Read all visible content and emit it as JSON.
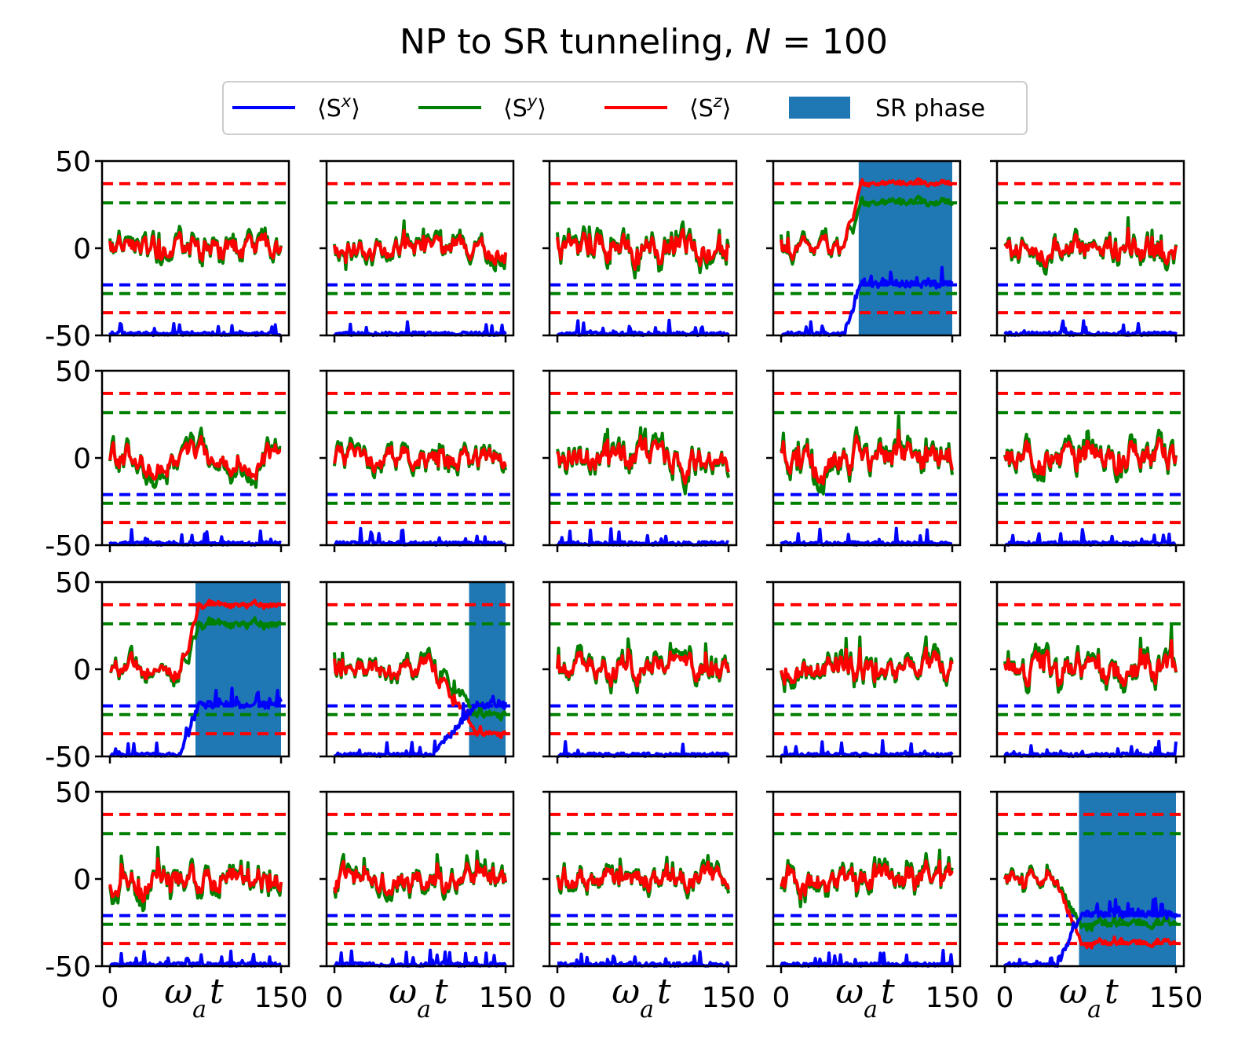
{
  "figure": {
    "title_prefix": "NP to SR tunneling, ",
    "title_var": "N",
    "title_eq": " = 100"
  },
  "legend": {
    "items": [
      {
        "key": "sx",
        "label_pre": "⟨S",
        "label_sup": "x",
        "label_post": "⟩",
        "color": "#0000ff",
        "kind": "line"
      },
      {
        "key": "sy",
        "label_pre": "⟨S",
        "label_sup": "y",
        "label_post": "⟩",
        "color": "#008000",
        "kind": "line"
      },
      {
        "key": "sz",
        "label_pre": "⟨S",
        "label_sup": "z",
        "label_post": "⟩",
        "color": "#ff0000",
        "kind": "line"
      },
      {
        "key": "sr",
        "label": "SR phase",
        "color": "#1f77b4",
        "kind": "patch"
      }
    ]
  },
  "chart_data": {
    "type": "line",
    "grid": {
      "rows": 4,
      "cols": 5
    },
    "xlim": [
      0,
      150
    ],
    "ylim": [
      -50,
      50
    ],
    "xticks": [
      0,
      150
    ],
    "xtick_labels": [
      "0",
      "150"
    ],
    "yticks": [
      50,
      0,
      -50
    ],
    "ytick_labels": [
      "50",
      "0",
      "-50"
    ],
    "xlabel_var": "ω",
    "xlabel_sub": "a",
    "xlabel_t": "t",
    "ylabel": "",
    "reference_lines": [
      {
        "series": "sz",
        "y": 37
      },
      {
        "series": "sy",
        "y": 26
      },
      {
        "series": "sx",
        "y": -21
      },
      {
        "series": "sy",
        "y": -26
      },
      {
        "series": "sz",
        "y": -37
      }
    ],
    "series_colors": {
      "sx": "#0000ff",
      "sy": "#008000",
      "sz": "#ff0000",
      "sr": "#1f77b4"
    },
    "panels": [
      {
        "seed": 11,
        "noise": 6,
        "sr": null
      },
      {
        "seed": 23,
        "noise": 5,
        "sr": null
      },
      {
        "seed": 37,
        "noise": 7,
        "sr": null
      },
      {
        "seed": 41,
        "noise": 4,
        "sr": [
          68,
          150
        ],
        "transition": {
          "start": 55,
          "end": 70
        }
      },
      {
        "seed": 53,
        "noise": 6,
        "sr": null
      },
      {
        "seed": 61,
        "noise": 6,
        "sr": null
      },
      {
        "seed": 73,
        "noise": 6,
        "sr": null
      },
      {
        "seed": 89,
        "noise": 7,
        "sr": null
      },
      {
        "seed": 97,
        "noise": 7,
        "sr": null
      },
      {
        "seed": 101,
        "noise": 7,
        "sr": null
      },
      {
        "seed": 113,
        "noise": 5,
        "sr": [
          75,
          150
        ],
        "transition": {
          "start": 62,
          "end": 78
        }
      },
      {
        "seed": 127,
        "noise": 5,
        "sr": [
          118,
          150
        ],
        "transition": {
          "start": 85,
          "end": 125
        },
        "inverted": true
      },
      {
        "seed": 131,
        "noise": 6,
        "sr": null
      },
      {
        "seed": 139,
        "noise": 6,
        "sr": null
      },
      {
        "seed": 149,
        "noise": 7,
        "sr": null
      },
      {
        "seed": 151,
        "noise": 7,
        "sr": null
      },
      {
        "seed": 163,
        "noise": 6,
        "sr": null
      },
      {
        "seed": 173,
        "noise": 6,
        "sr": null
      },
      {
        "seed": 181,
        "noise": 7,
        "sr": null
      },
      {
        "seed": 191,
        "noise": 4,
        "sr": [
          65,
          150
        ],
        "transition": {
          "start": 45,
          "end": 68
        },
        "inverted": true
      }
    ]
  }
}
